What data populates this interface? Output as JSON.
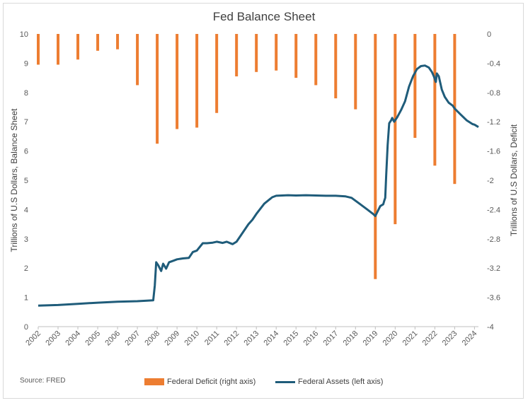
{
  "chart_data": {
    "type": "bar+line",
    "title": "Fed Balance Sheet",
    "source": "Source: FRED",
    "colors": {
      "deficit": "#ED7D31",
      "assets": "#1F5C7A",
      "axis_text": "#595959"
    },
    "y_left": {
      "label": "Trillions of U.S Dollars, Balance Sheet",
      "lim": [
        0,
        10
      ],
      "ticks": [
        "0",
        "1",
        "2",
        "3",
        "4",
        "5",
        "6",
        "7",
        "8",
        "9",
        "10"
      ]
    },
    "y_right": {
      "label": "Trillions of U.S Dollars, Deficit",
      "lim": [
        -4,
        0
      ],
      "ticks": [
        "0",
        "-0.4",
        "-0.8",
        "-1.2",
        "-1.6",
        "-2",
        "-2.4",
        "-2.8",
        "-3.2",
        "-3.6",
        "-4"
      ]
    },
    "x": {
      "lim": [
        2002,
        2024.2
      ],
      "ticks": [
        "2002",
        "2003",
        "2004",
        "2005",
        "2006",
        "2007",
        "2008",
        "2009",
        "2010",
        "2011",
        "2012",
        "2013",
        "2014",
        "2015",
        "2016",
        "2017",
        "2018",
        "2019",
        "2020",
        "2021",
        "2022",
        "2023",
        "2024"
      ]
    },
    "series": [
      {
        "name": "Federal Deficit (right axis)",
        "type": "bar",
        "axis": "right",
        "x": [
          2002.0,
          2003.0,
          2004.0,
          2005.0,
          2006.0,
          2007.0,
          2008.0,
          2009.0,
          2010.0,
          2011.0,
          2012.0,
          2013.0,
          2014.0,
          2015.0,
          2016.0,
          2017.0,
          2018.0,
          2019.0,
          2020.0,
          2021.0,
          2022.0,
          2023.0
        ],
        "values": [
          -0.42,
          -0.42,
          -0.35,
          -0.23,
          -0.21,
          -0.7,
          -1.5,
          -1.3,
          -1.28,
          -1.08,
          -0.58,
          -0.52,
          -0.5,
          -0.6,
          -0.7,
          -0.88,
          -1.03,
          -3.35,
          -2.6,
          -1.42,
          -1.8,
          -2.05
        ]
      },
      {
        "name": "Federal Assets (left axis)",
        "type": "line",
        "axis": "left",
        "x": [
          2002.0,
          2003.0,
          2004.0,
          2005.0,
          2006.0,
          2007.0,
          2007.8,
          2007.88,
          2007.95,
          2008.05,
          2008.2,
          2008.3,
          2008.45,
          2008.6,
          2008.8,
          2009.0,
          2009.3,
          2009.6,
          2009.8,
          2010.0,
          2010.3,
          2010.5,
          2010.8,
          2011.0,
          2011.3,
          2011.5,
          2011.8,
          2012.0,
          2012.3,
          2012.6,
          2012.8,
          2013.0,
          2013.4,
          2013.8,
          2014.0,
          2014.3,
          2014.6,
          2015.0,
          2015.5,
          2016.0,
          2016.5,
          2017.0,
          2017.5,
          2017.8,
          2018.2,
          2018.6,
          2018.85,
          2019.0,
          2019.25,
          2019.4,
          2019.45,
          2019.5,
          2019.55,
          2019.62,
          2019.7,
          2019.8,
          2019.85,
          2019.95,
          2020.1,
          2020.3,
          2020.5,
          2020.7,
          2020.9,
          2021.1,
          2021.3,
          2021.5,
          2021.7,
          2021.85,
          2021.95,
          2022.0,
          2022.05,
          2022.1,
          2022.2,
          2022.35,
          2022.5,
          2022.7,
          2022.9,
          2023.0,
          2023.3,
          2023.6,
          2023.9,
          2024.0,
          2024.2
        ],
        "values": [
          0.72,
          0.74,
          0.78,
          0.82,
          0.85,
          0.87,
          0.9,
          1.4,
          2.2,
          2.1,
          1.9,
          2.15,
          1.98,
          2.2,
          2.25,
          2.3,
          2.33,
          2.35,
          2.55,
          2.6,
          2.85,
          2.85,
          2.87,
          2.9,
          2.86,
          2.9,
          2.82,
          2.9,
          3.2,
          3.5,
          3.65,
          3.85,
          4.2,
          4.42,
          4.47,
          4.48,
          4.49,
          4.48,
          4.49,
          4.48,
          4.47,
          4.47,
          4.45,
          4.4,
          4.2,
          4.0,
          3.87,
          3.78,
          4.12,
          4.18,
          4.3,
          4.4,
          5.2,
          6.2,
          6.95,
          7.05,
          7.13,
          7.0,
          7.15,
          7.4,
          7.7,
          8.2,
          8.55,
          8.8,
          8.9,
          8.92,
          8.85,
          8.7,
          8.55,
          8.45,
          8.36,
          8.65,
          8.55,
          8.1,
          7.85,
          7.65,
          7.55,
          7.45,
          7.25,
          7.05,
          6.92,
          6.9,
          6.82
        ]
      }
    ],
    "legend": {
      "placement": "bottom"
    }
  }
}
